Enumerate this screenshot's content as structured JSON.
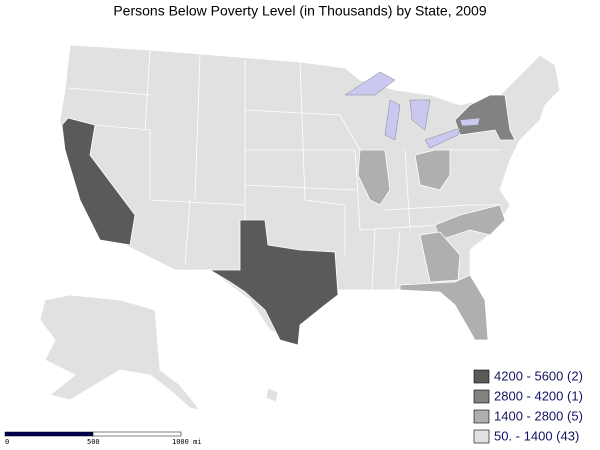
{
  "title": "Persons Below Poverty Level (in Thousands) by State, 2009",
  "legend": [
    {
      "label": "4200 - 5600 (2)",
      "color": "#5a5a5a"
    },
    {
      "label": "2800 - 4200 (1)",
      "color": "#828282"
    },
    {
      "label": "1400 - 2800 (5)",
      "color": "#afafaf"
    },
    {
      "label": "50. - 1400 (43)",
      "color": "#e1e1e1"
    }
  ],
  "scale_bar": {
    "labels": [
      "0",
      "500",
      "1000 mi"
    ]
  },
  "water_color": "#c8c8f0"
}
